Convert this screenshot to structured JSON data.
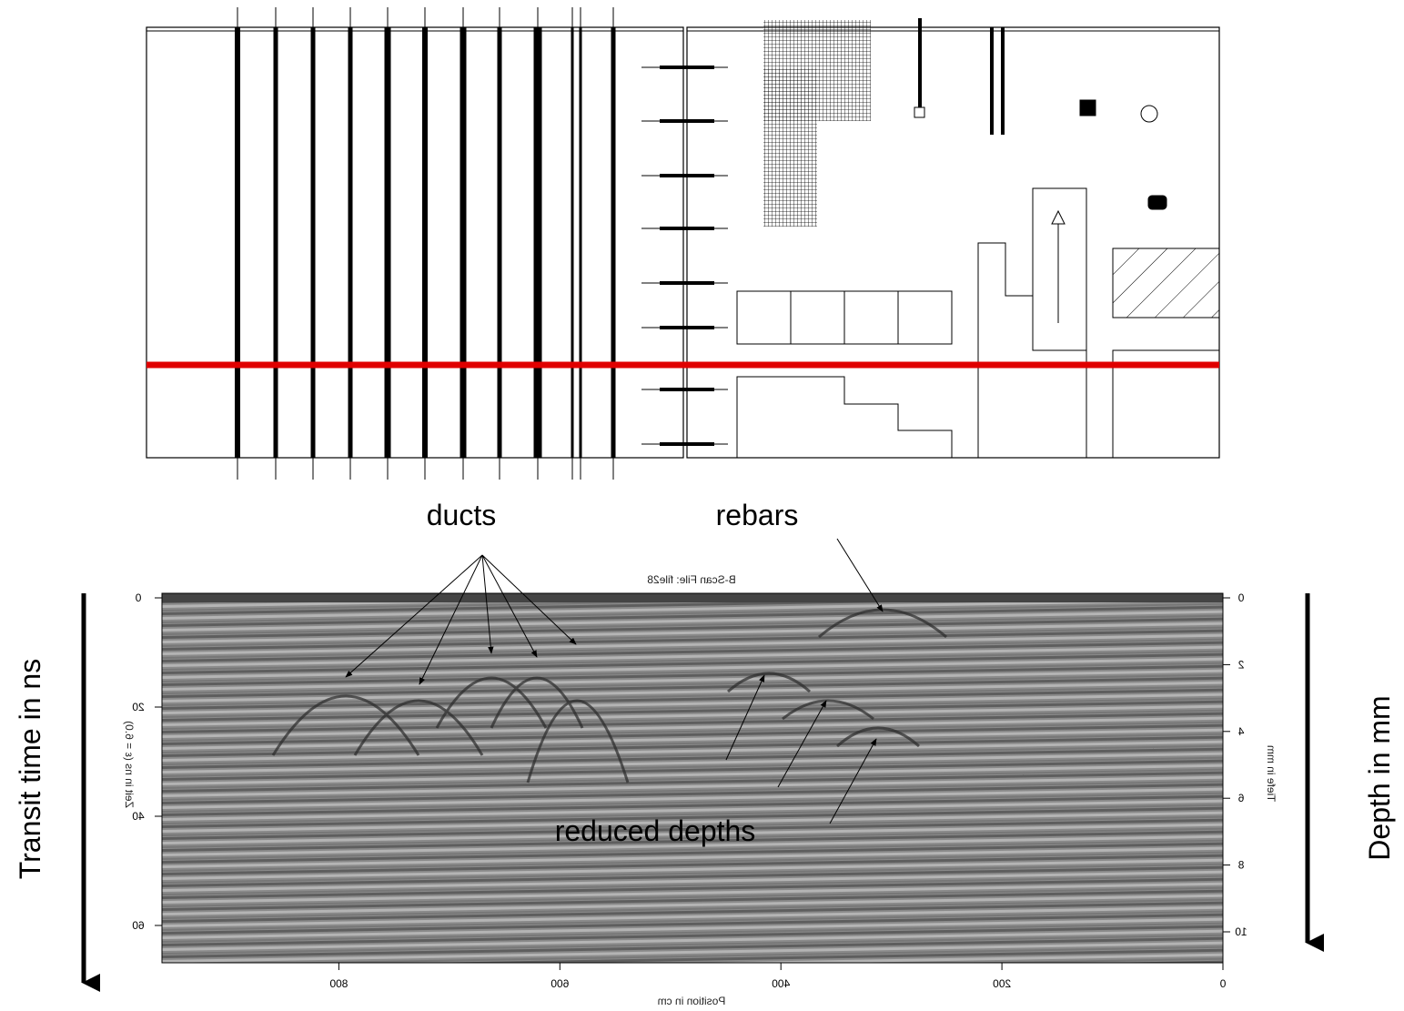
{
  "annotations": {
    "ducts": "ducts",
    "rebars": "rebars",
    "reduced_depths": "reduced depths",
    "left_axis": "Transit time in ns",
    "right_axis": "Depth in mm"
  },
  "bscan": {
    "title": "B-Scan File: file28",
    "x_label": "Position in cm",
    "x_ticks": [
      800,
      600,
      400,
      200,
      0
    ],
    "left_label": "Zeit in ns (ε = 6.0)",
    "left_ticks": [
      0,
      20,
      40,
      60
    ],
    "right_label": "Tiefe in mm",
    "right_ticks": [
      0,
      2,
      4,
      6,
      8,
      10
    ]
  }
}
